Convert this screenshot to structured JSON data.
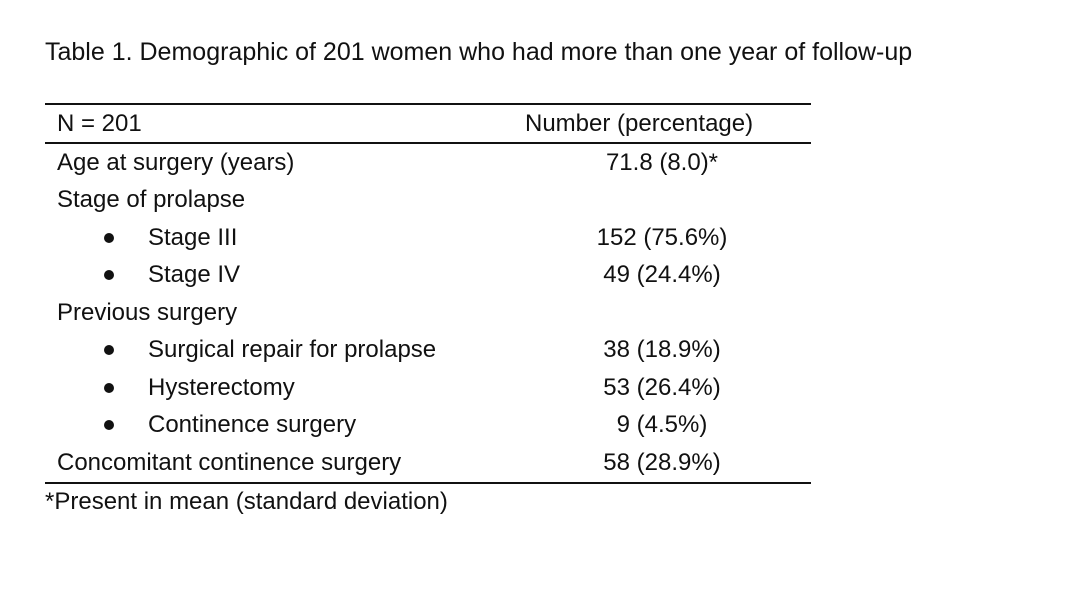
{
  "caption": "Table 1. Demographic of 201 women who had more than one year of follow-up",
  "table": {
    "header": {
      "label": "N = 201",
      "value": "Number (percentage)"
    },
    "rows": [
      {
        "label": "Age at surgery (years)",
        "value": "71.8 (8.0)*",
        "bullet": false
      },
      {
        "label": "Stage of prolapse",
        "value": "",
        "bullet": false
      },
      {
        "label": "Stage III",
        "value": "152 (75.6%)",
        "bullet": true
      },
      {
        "label": "Stage IV",
        "value": "49 (24.4%)",
        "bullet": true
      },
      {
        "label": "Previous surgery",
        "value": "",
        "bullet": false
      },
      {
        "label": "Surgical repair for prolapse",
        "value": "38 (18.9%)",
        "bullet": true
      },
      {
        "label": "Hysterectomy",
        "value": "53 (26.4%)",
        "bullet": true
      },
      {
        "label": "Continence surgery",
        "value": "9 (4.5%)",
        "bullet": true
      },
      {
        "label": "Concomitant continence surgery",
        "value": "58 (28.9%)",
        "bullet": false
      }
    ]
  },
  "footnote": "*Present in mean (standard deviation)"
}
